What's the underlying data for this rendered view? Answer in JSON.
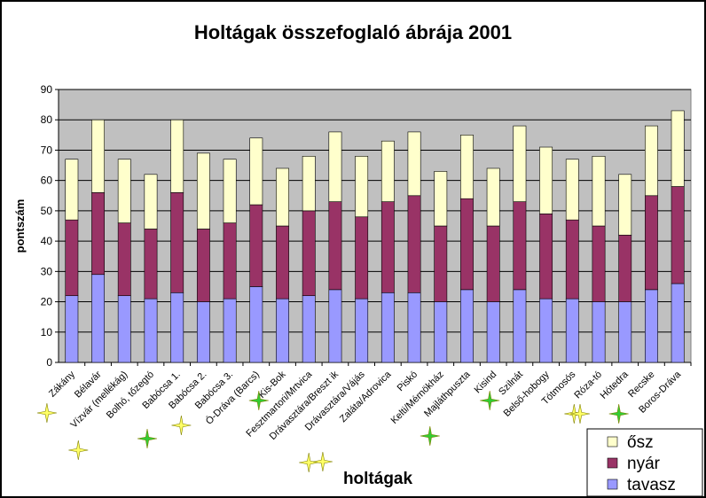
{
  "chart_data": {
    "type": "bar",
    "stacked": true,
    "title": "Holtágak összefoglaló ábrája 2001",
    "xlabel": "holtágak",
    "ylabel": "pontszám",
    "ylim": [
      0,
      90
    ],
    "yticks": [
      0,
      10,
      20,
      30,
      40,
      50,
      60,
      70,
      80,
      90
    ],
    "grid": true,
    "legend_position": "bottom-right",
    "plot_background": "#c0c0c0",
    "categories": [
      "Zákány",
      "Bélavár",
      "Vízvár (mellékág)",
      "Bolhó, tőzegtó",
      "Babócsa 1.",
      "Babócsa 2.",
      "Babócsa 3.",
      "Ó-Dráva (Barcs)",
      "Kis-Bok",
      "Fesztmartori/Mrtvica",
      "Drávasztára/Breszt ik",
      "Drávasztára/Vájás",
      "Zaláta/Adrovica",
      "Piskó",
      "Kelti/Mérnökház",
      "Majláthpuszta",
      "Kisind",
      "Szilnát",
      "Belső-hobogy",
      "Tótmosós",
      "Róza-tó",
      "Hótedra",
      "Recske",
      "Boros-Dráva"
    ],
    "series": [
      {
        "name": "tavasz",
        "color": "#9999ff",
        "values": [
          22,
          29,
          22,
          21,
          23,
          20,
          21,
          25,
          21,
          22,
          24,
          21,
          23,
          23,
          20,
          24,
          20,
          24,
          21,
          21,
          20,
          20,
          24,
          26
        ]
      },
      {
        "name": "nyár",
        "color": "#993366",
        "values": [
          25,
          27,
          24,
          23,
          33,
          24,
          25,
          27,
          24,
          28,
          29,
          27,
          30,
          32,
          25,
          30,
          25,
          29,
          28,
          26,
          25,
          22,
          31,
          32
        ]
      },
      {
        "name": "ősz",
        "color": "#ffffcc",
        "values": [
          20,
          24,
          21,
          18,
          24,
          25,
          21,
          22,
          19,
          18,
          23,
          20,
          20,
          21,
          18,
          21,
          19,
          25,
          22,
          20,
          23,
          20,
          23,
          25
        ]
      }
    ],
    "legend_order": [
      "ősz",
      "nyár",
      "tavasz"
    ],
    "star_markers": [
      {
        "category": "Zákány",
        "color": "#ffff66"
      },
      {
        "category": "Vízvár (mellékág)",
        "color": "#ffff66"
      },
      {
        "category": "Bolhó, tőzegtó",
        "color": "#33cc33"
      },
      {
        "category": "Babócsa 2.",
        "color": "#ffff66"
      },
      {
        "category": "Ó-Dráva (Barcs)",
        "color": "#33cc33"
      },
      {
        "category": "Fesztmartori/Mrtvica",
        "color": "#ffff66"
      },
      {
        "category": "Drávasztára/Breszt ik",
        "color": "#ffff66"
      },
      {
        "category": "Kelti/Mérnökház",
        "color": "#33cc33"
      },
      {
        "category": "Kisind",
        "color": "#33cc33"
      },
      {
        "category": "Tótmosós",
        "color": "#ffff66"
      },
      {
        "category": "Róza-tó",
        "color": "#ffff66"
      },
      {
        "category": "Hótedra",
        "color": "#33cc33"
      }
    ]
  }
}
